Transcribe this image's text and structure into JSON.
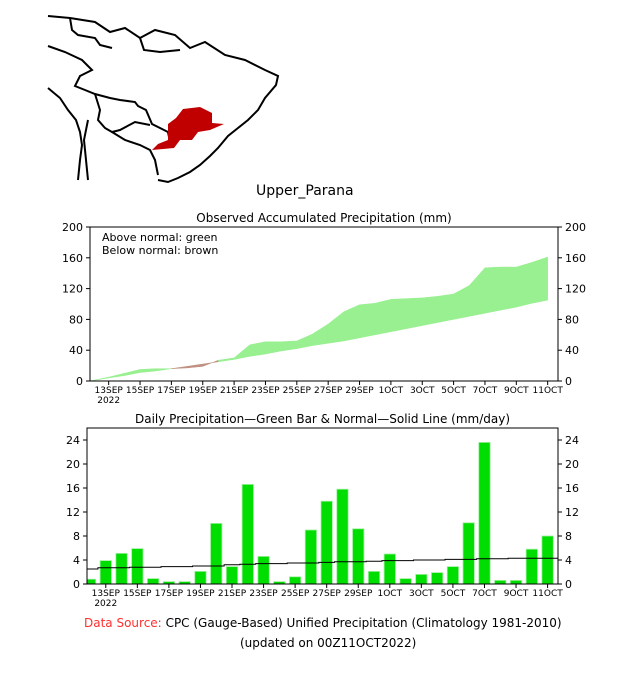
{
  "region_title": "Upper_Parana",
  "colors": {
    "above": "#98f090",
    "below": "#c09080",
    "bar": "#00dd00",
    "source_label": "#ff3030"
  },
  "chart_data": [
    {
      "type": "area",
      "title": "Observed Accumulated Precipitation (mm)",
      "legend": [
        "Above normal: green",
        "Below normal: brown"
      ],
      "legend_placement": "top-left",
      "ylim": [
        0,
        200
      ],
      "yticks": [
        "0",
        "40",
        "80",
        "120",
        "160",
        "200"
      ],
      "xticks": [
        "13SEP",
        "15SEP",
        "17SEP",
        "19SEP",
        "21SEP",
        "23SEP",
        "25SEP",
        "27SEP",
        "29SEP",
        "1OCT",
        "3OCT",
        "5OCT",
        "7OCT",
        "9OCT",
        "11OCT"
      ],
      "xtick_sub": "2022",
      "dates": [
        "12SEP",
        "13SEP",
        "14SEP",
        "15SEP",
        "16SEP",
        "17SEP",
        "18SEP",
        "19SEP",
        "20SEP",
        "21SEP",
        "22SEP",
        "23SEP",
        "24SEP",
        "25SEP",
        "26SEP",
        "27SEP",
        "28SEP",
        "29SEP",
        "30SEP",
        "1OCT",
        "2OCT",
        "3OCT",
        "4OCT",
        "5OCT",
        "6OCT",
        "7OCT",
        "8OCT",
        "9OCT",
        "10OCT",
        "11OCT"
      ],
      "series": [
        {
          "name": "Observed",
          "values": [
            1,
            5,
            10,
            15,
            16,
            16,
            17,
            19,
            27,
            30,
            47,
            51,
            51,
            52,
            61,
            74,
            90,
            99,
            101,
            106,
            107,
            108,
            110,
            113,
            124,
            147,
            148,
            148,
            154,
            161
          ]
        },
        {
          "name": "Normal",
          "values": [
            1,
            4,
            7,
            11,
            13,
            16,
            19,
            22,
            25,
            28,
            32,
            35,
            39,
            42,
            46,
            49,
            52,
            56,
            60,
            64,
            68,
            72,
            76,
            80,
            84,
            88,
            92,
            96,
            101,
            105
          ]
        }
      ]
    },
    {
      "type": "bar",
      "title": "Daily Precipitation—Green Bar & Normal—Solid Line (mm/day)",
      "ylim": [
        0,
        26
      ],
      "yticks": [
        "0",
        "4",
        "8",
        "12",
        "16",
        "20",
        "24"
      ],
      "xticks": [
        "13SEP",
        "15SEP",
        "17SEP",
        "19SEP",
        "21SEP",
        "23SEP",
        "25SEP",
        "27SEP",
        "29SEP",
        "1OCT",
        "3OCT",
        "5OCT",
        "7OCT",
        "9OCT",
        "11OCT"
      ],
      "xtick_sub": "2022",
      "dates": [
        "12SEP",
        "13SEP",
        "14SEP",
        "15SEP",
        "16SEP",
        "17SEP",
        "18SEP",
        "19SEP",
        "20SEP",
        "21SEP",
        "22SEP",
        "23SEP",
        "24SEP",
        "25SEP",
        "26SEP",
        "27SEP",
        "28SEP",
        "29SEP",
        "30SEP",
        "1OCT",
        "2OCT",
        "3OCT",
        "4OCT",
        "5OCT",
        "6OCT",
        "7OCT",
        "8OCT",
        "9OCT",
        "10OCT",
        "11OCT"
      ],
      "series": [
        {
          "name": "Daily Precipitation",
          "values": [
            0.8,
            3.9,
            5.1,
            5.9,
            0.9,
            0.4,
            0.4,
            2.1,
            10.1,
            2.9,
            16.6,
            4.6,
            0.4,
            1.2,
            9.0,
            13.8,
            15.8,
            9.2,
            2.1,
            5.0,
            0.9,
            1.6,
            1.9,
            2.9,
            10.2,
            23.6,
            0.6,
            0.6,
            5.8,
            8.0
          ]
        },
        {
          "name": "Normal",
          "values": [
            2.5,
            2.7,
            2.7,
            2.8,
            2.8,
            2.9,
            2.9,
            3.0,
            3.0,
            3.2,
            3.3,
            3.4,
            3.4,
            3.5,
            3.5,
            3.6,
            3.7,
            3.7,
            3.8,
            3.9,
            3.9,
            4.0,
            4.0,
            4.1,
            4.1,
            4.2,
            4.2,
            4.3,
            4.3,
            4.3
          ]
        }
      ]
    }
  ],
  "footer": {
    "source_label": "Data Source:",
    "source_text": "CPC (Gauge-Based) Unified Precipitation (Climatology 1981-2010)",
    "updated": "(updated on 00Z11OCT2022)"
  }
}
